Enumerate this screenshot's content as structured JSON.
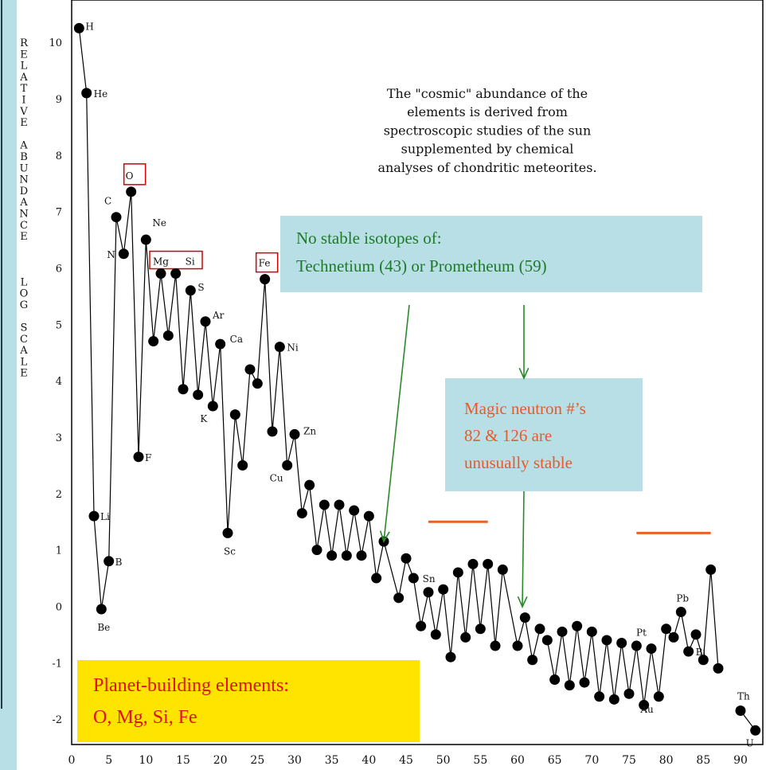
{
  "chart_data": {
    "type": "line",
    "ylabel_letters": [
      "R",
      "E",
      "L",
      "A",
      "T",
      "I",
      "V",
      "E",
      "",
      "A",
      "B",
      "U",
      "N",
      "D",
      "A",
      "N",
      "C",
      "E",
      "",
      "",
      "",
      "L",
      "O",
      "G",
      "",
      "S",
      "C",
      "A",
      "L",
      "E"
    ],
    "xlim": [
      0,
      93
    ],
    "ylim": [
      -2.45,
      10.75
    ],
    "x_ticks": [
      0,
      5,
      10,
      15,
      20,
      25,
      30,
      35,
      40,
      45,
      50,
      55,
      60,
      65,
      70,
      75,
      80,
      85,
      90
    ],
    "y_ticks": [
      10,
      9,
      8,
      7,
      6,
      5,
      4,
      3,
      2,
      1,
      0,
      -1,
      -2
    ],
    "series": [
      {
        "segments": [
          [
            [
              1,
              10.25
            ],
            [
              2,
              9.1
            ],
            [
              3,
              1.6
            ],
            [
              4,
              -0.05
            ],
            [
              5,
              0.8
            ],
            [
              6,
              6.9
            ],
            [
              7,
              6.25
            ],
            [
              8,
              7.35
            ],
            [
              9,
              2.65
            ],
            [
              10,
              6.5
            ],
            [
              11,
              4.7
            ],
            [
              12,
              5.9
            ],
            [
              13,
              4.8
            ],
            [
              14,
              5.9
            ],
            [
              15,
              3.85
            ],
            [
              16,
              5.6
            ],
            [
              17,
              3.75
            ],
            [
              18,
              5.05
            ],
            [
              19,
              3.55
            ],
            [
              20,
              4.65
            ],
            [
              21,
              1.3
            ],
            [
              22,
              3.4
            ],
            [
              23,
              2.5
            ],
            [
              24,
              4.2
            ],
            [
              25,
              3.95
            ],
            [
              26,
              5.8
            ],
            [
              27,
              3.1
            ],
            [
              28,
              4.6
            ],
            [
              29,
              2.5
            ],
            [
              30,
              3.05
            ],
            [
              31,
              1.65
            ],
            [
              32,
              2.15
            ],
            [
              33,
              1.0
            ],
            [
              34,
              1.8
            ],
            [
              35,
              0.9
            ],
            [
              36,
              1.8
            ],
            [
              37,
              0.9
            ],
            [
              38,
              1.7
            ],
            [
              39,
              0.9
            ],
            [
              40,
              1.6
            ],
            [
              41,
              0.5
            ],
            [
              42,
              1.15
            ],
            [
              44,
              0.15
            ],
            [
              45,
              0.85
            ],
            [
              46,
              0.5
            ],
            [
              47,
              -0.35
            ],
            [
              48,
              0.25
            ],
            [
              49,
              -0.5
            ],
            [
              50,
              0.3
            ],
            [
              51,
              -0.9
            ],
            [
              52,
              0.6
            ],
            [
              53,
              -0.55
            ],
            [
              54,
              0.75
            ],
            [
              55,
              -0.4
            ],
            [
              56,
              0.75
            ],
            [
              57,
              -0.7
            ],
            [
              58,
              0.65
            ],
            [
              60,
              -0.7
            ],
            [
              61,
              -0.2
            ],
            [
              62,
              -0.95
            ],
            [
              63,
              -0.4
            ]
          ],
          [
            [
              64,
              -0.6
            ],
            [
              65,
              -1.3
            ],
            [
              66,
              -0.45
            ],
            [
              67,
              -1.4
            ],
            [
              68,
              -0.35
            ],
            [
              69,
              -1.35
            ],
            [
              70,
              -0.45
            ],
            [
              71,
              -1.6
            ],
            [
              72,
              -0.6
            ],
            [
              73,
              -1.65
            ],
            [
              74,
              -0.65
            ],
            [
              75,
              -1.55
            ],
            [
              76,
              -0.7
            ],
            [
              77,
              -1.75
            ],
            [
              78,
              -0.75
            ],
            [
              79,
              -1.6
            ],
            [
              80,
              -0.4
            ],
            [
              81,
              -0.55
            ],
            [
              82,
              -0.1
            ],
            [
              83,
              -0.8
            ],
            [
              84,
              -0.5
            ],
            [
              85,
              -0.95
            ],
            [
              86,
              0.65
            ],
            [
              87,
              -1.1
            ]
          ],
          [
            [
              90,
              -1.85
            ],
            [
              92,
              -2.2
            ]
          ]
        ]
      }
    ],
    "element_labels": [
      {
        "text": "H",
        "x": 1,
        "y": 10.25
      },
      {
        "text": "He",
        "x": 2,
        "y": 9.1
      },
      {
        "text": "Li",
        "x": 3,
        "y": 1.6
      },
      {
        "text": "Be",
        "x": 4,
        "y": -0.05
      },
      {
        "text": "B",
        "x": 5,
        "y": 0.8
      },
      {
        "text": "C",
        "x": 6,
        "y": 6.9
      },
      {
        "text": "N",
        "x": 7,
        "y": 6.25
      },
      {
        "text": "O",
        "x": 8,
        "y": 7.35
      },
      {
        "text": "F",
        "x": 9,
        "y": 2.65
      },
      {
        "text": "Ne",
        "x": 10,
        "y": 6.5
      },
      {
        "text": "Mg",
        "x": 12,
        "y": 5.9
      },
      {
        "text": "Si",
        "x": 14,
        "y": 5.9
      },
      {
        "text": "S",
        "x": 16,
        "y": 5.6
      },
      {
        "text": "Ar",
        "x": 18,
        "y": 5.05
      },
      {
        "text": "K",
        "x": 19,
        "y": 3.55
      },
      {
        "text": "Ca",
        "x": 20,
        "y": 4.65
      },
      {
        "text": "Sc",
        "x": 21,
        "y": 1.3
      },
      {
        "text": "Fe",
        "x": 26,
        "y": 5.8
      },
      {
        "text": "Ni",
        "x": 28,
        "y": 4.6
      },
      {
        "text": "Cu",
        "x": 29,
        "y": 2.5
      },
      {
        "text": "Zn",
        "x": 30,
        "y": 3.05
      },
      {
        "text": "Sn",
        "x": 50,
        "y": 0.3
      },
      {
        "text": "Pt",
        "x": 78,
        "y": -0.75
      },
      {
        "text": "Au",
        "x": 79,
        "y": -1.6
      },
      {
        "text": "Pb",
        "x": 82,
        "y": -0.1
      },
      {
        "text": "Bi",
        "x": 83,
        "y": -0.8
      },
      {
        "text": "Th",
        "x": 90,
        "y": -1.85
      },
      {
        "text": "U",
        "x": 92,
        "y": -2.2
      }
    ],
    "annotations": {
      "caption_lines": [
        "The \"cosmic\" abundance of the",
        "elements is derived from",
        "spectroscopic studies of the sun",
        "supplemented by chemical",
        "analyses of chondritic meteorites."
      ],
      "isotope_box_lines": [
        "No stable isotopes of:",
        "Technetium (43) or Prometheum (59)"
      ],
      "magic_box_lines": [
        "Magic neutron #’s",
        "82 & 126 are",
        "unusually stable"
      ],
      "planet_box_lines": [
        "Planet-building elements:",
        "O, Mg, Si, Fe"
      ]
    },
    "highlight_elements": [
      "O",
      "Mg Si",
      "Fe"
    ],
    "magic_marks": [
      {
        "x_from": 48,
        "x_to": 56,
        "y": 1.5
      },
      {
        "x_from": 76,
        "x_to": 86,
        "y": 1.3
      }
    ]
  },
  "colors": {
    "line": "#000000",
    "marker": "#000000",
    "highlight_border": "#d40000",
    "isotope_box_fill": "#b9dfe6",
    "isotope_text": "#1e7a2a",
    "arrow": "#2a8a2a",
    "magic_box_fill": "#b9dfe6",
    "magic_text": "#e85a2a",
    "magic_mark": "#e8602a",
    "planet_box_fill": "#ffe400",
    "planet_text": "#e01010",
    "side_bar": "#b9dfe6"
  }
}
